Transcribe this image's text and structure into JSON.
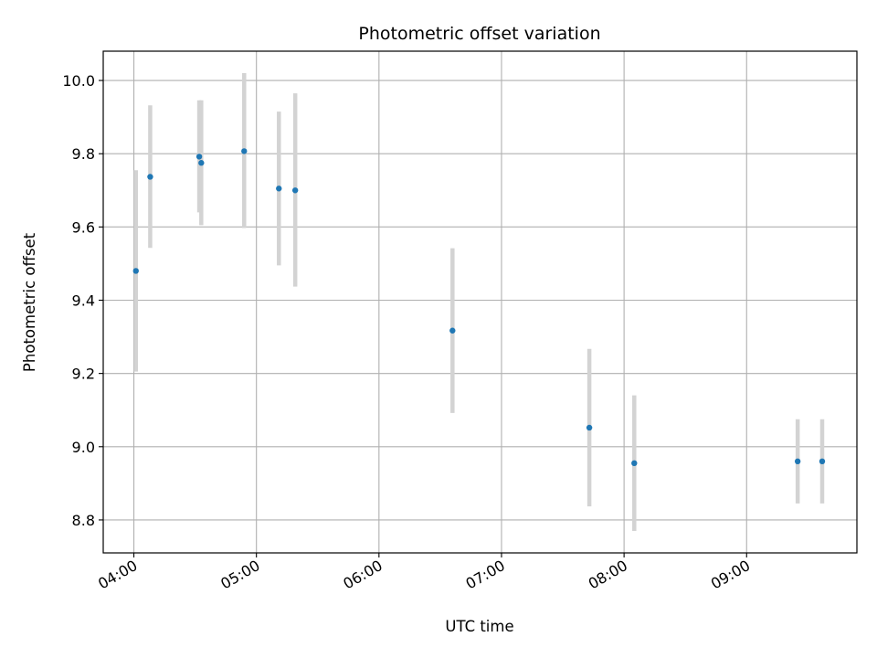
{
  "chart_data": {
    "type": "scatter",
    "title": "Photometric offset variation",
    "xlabel": "UTC time",
    "ylabel": "Photometric offset",
    "xlim": [
      "03:45",
      "09:54"
    ],
    "ylim": [
      8.71,
      10.08
    ],
    "x_ticks": [
      "04:00",
      "05:00",
      "06:00",
      "07:00",
      "08:00",
      "09:00"
    ],
    "y_ticks": [
      8.8,
      9.0,
      9.2,
      9.4,
      9.6,
      9.8,
      10.0
    ],
    "grid": true,
    "colors": {
      "point": "#1f77b4",
      "errorbar": "#d3d3d3",
      "grid": "#b0b0b0"
    },
    "series": [
      {
        "points": [
          {
            "time": "04:01",
            "y": 9.48,
            "err_low": 9.205,
            "err_high": 9.755
          },
          {
            "time": "04:08",
            "y": 9.737,
            "err_low": 9.543,
            "err_high": 9.932
          },
          {
            "time": "04:32",
            "y": 9.792,
            "err_low": 9.64,
            "err_high": 9.946
          },
          {
            "time": "04:33",
            "y": 9.775,
            "err_low": 9.605,
            "err_high": 9.946
          },
          {
            "time": "04:54",
            "y": 9.807,
            "err_low": 9.597,
            "err_high": 10.02
          },
          {
            "time": "05:11",
            "y": 9.705,
            "err_low": 9.495,
            "err_high": 9.915
          },
          {
            "time": "05:19",
            "y": 9.7,
            "err_low": 9.437,
            "err_high": 9.965
          },
          {
            "time": "06:36",
            "y": 9.317,
            "err_low": 9.092,
            "err_high": 9.542
          },
          {
            "time": "07:43",
            "y": 9.052,
            "err_low": 8.837,
            "err_high": 9.267
          },
          {
            "time": "08:05",
            "y": 8.955,
            "err_low": 8.77,
            "err_high": 9.14
          },
          {
            "time": "09:25",
            "y": 8.96,
            "err_low": 8.845,
            "err_high": 9.075
          },
          {
            "time": "09:37",
            "y": 8.96,
            "err_low": 8.845,
            "err_high": 9.075
          }
        ]
      }
    ]
  }
}
